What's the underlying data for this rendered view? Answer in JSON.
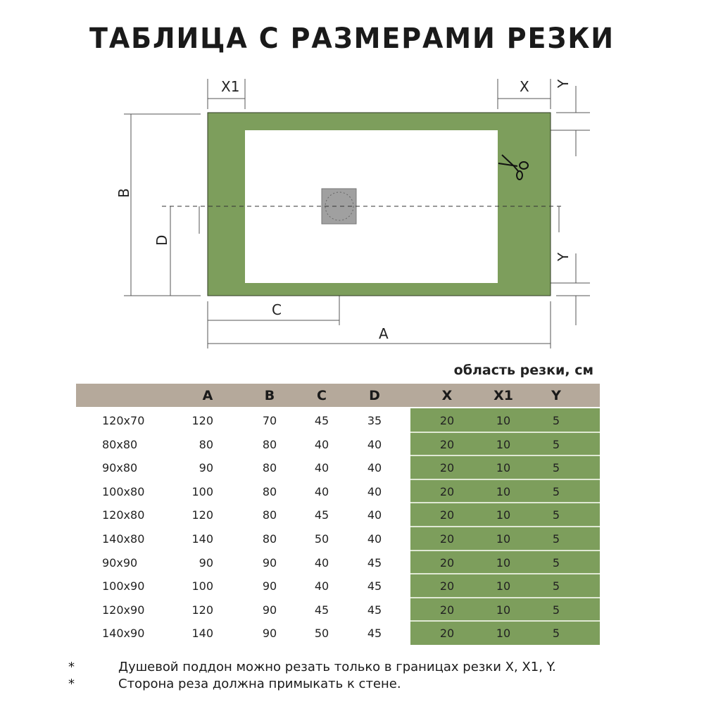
{
  "title": "ТАБЛИЦА С РАЗМЕРАМИ РЕЗКИ",
  "diagram": {
    "labels": {
      "A": "A",
      "B": "B",
      "C": "C",
      "D": "D",
      "X": "X",
      "X1": "X1",
      "Y_top": "Y",
      "Y_bottom": "Y"
    },
    "colors": {
      "tray": "#7d9e5c",
      "drain": "#a0a0a0"
    },
    "icons": [
      "scissors-icon"
    ]
  },
  "table": {
    "caption": "область резки, см",
    "headers": [
      "",
      "A",
      "B",
      "C",
      "D",
      "X",
      "X1",
      "Y"
    ],
    "rows": [
      [
        "120x70",
        "120",
        "70",
        "45",
        "35",
        "20",
        "10",
        "5"
      ],
      [
        "80x80",
        "80",
        "80",
        "40",
        "40",
        "20",
        "10",
        "5"
      ],
      [
        "90x80",
        "90",
        "80",
        "40",
        "40",
        "20",
        "10",
        "5"
      ],
      [
        "100x80",
        "100",
        "80",
        "40",
        "40",
        "20",
        "10",
        "5"
      ],
      [
        "120x80",
        "120",
        "80",
        "45",
        "40",
        "20",
        "10",
        "5"
      ],
      [
        "140x80",
        "140",
        "80",
        "50",
        "40",
        "20",
        "10",
        "5"
      ],
      [
        "90x90",
        "90",
        "90",
        "40",
        "45",
        "20",
        "10",
        "5"
      ],
      [
        "100x90",
        "100",
        "90",
        "40",
        "45",
        "20",
        "10",
        "5"
      ],
      [
        "120x90",
        "120",
        "90",
        "45",
        "45",
        "20",
        "10",
        "5"
      ],
      [
        "140x90",
        "140",
        "90",
        "50",
        "45",
        "20",
        "10",
        "5"
      ]
    ],
    "colors": {
      "header": "#b5a99b",
      "cut_area": "#7d9e5c"
    }
  },
  "notes": [
    {
      "mark": "*",
      "text": "Душевой поддон можно резать только в границах резки X, X1, Y."
    },
    {
      "mark": "*",
      "text": "Сторона реза должна примыкать к стене."
    }
  ]
}
